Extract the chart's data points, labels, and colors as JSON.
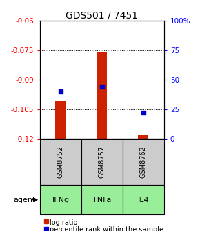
{
  "title": "GDS501 / 7451",
  "samples": [
    "GSM8752",
    "GSM8757",
    "GSM8762"
  ],
  "agents": [
    "IFNg",
    "TNFa",
    "IL4"
  ],
  "log_ratios": [
    -0.101,
    -0.076,
    -0.1185
  ],
  "log_ratio_base": -0.12,
  "percentile_ranks": [
    40,
    44,
    22
  ],
  "ylim_left": [
    -0.12,
    -0.06
  ],
  "ylim_right": [
    0,
    100
  ],
  "yticks_left": [
    -0.12,
    -0.105,
    -0.09,
    -0.075,
    -0.06
  ],
  "yticks_right": [
    0,
    25,
    50,
    75,
    100
  ],
  "bar_color": "#cc2200",
  "square_color": "#0000cc",
  "agent_bg": "#99ee99",
  "sample_bg": "#cccccc",
  "title_fontsize": 10,
  "tick_fontsize": 7.5,
  "legend_fontsize": 7,
  "bar_width": 0.25
}
